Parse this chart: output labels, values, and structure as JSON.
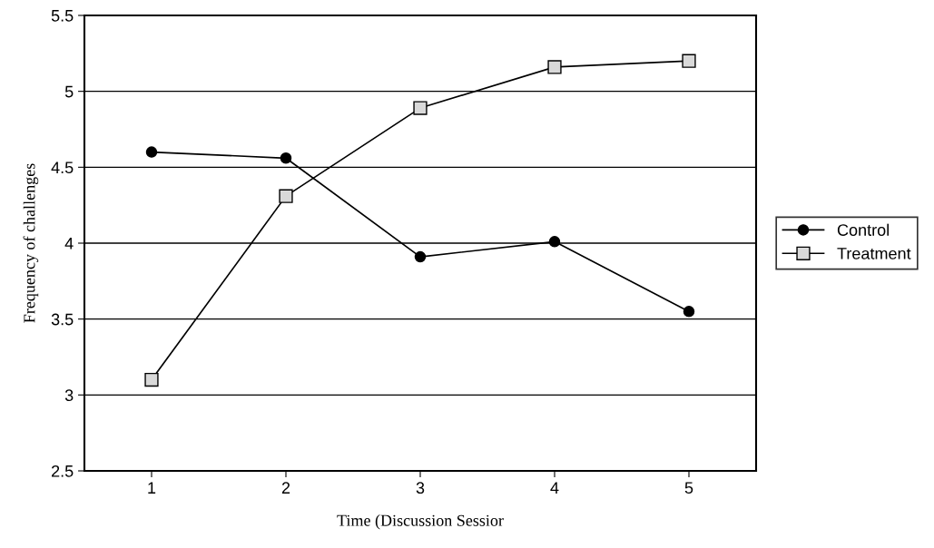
{
  "chart_data": {
    "type": "line",
    "xlabel": "Time (Discussion Sessior",
    "ylabel": "Frequency of challenges",
    "categories": [
      "1",
      "2",
      "3",
      "4",
      "5"
    ],
    "series": [
      {
        "name": "Control",
        "color": "#000000",
        "marker": "circle",
        "values": [
          4.6,
          4.56,
          3.91,
          4.01,
          3.55
        ]
      },
      {
        "name": "Treatment",
        "color": "#000000",
        "marker": "square",
        "values": [
          3.1,
          4.31,
          4.89,
          5.16,
          5.2
        ]
      }
    ],
    "ylim": [
      2.5,
      5.5
    ],
    "yticks": [
      2.5,
      3,
      3.5,
      4,
      4.5,
      5,
      5.5
    ],
    "grid": "y",
    "legend": "right",
    "line_style": "solid"
  }
}
